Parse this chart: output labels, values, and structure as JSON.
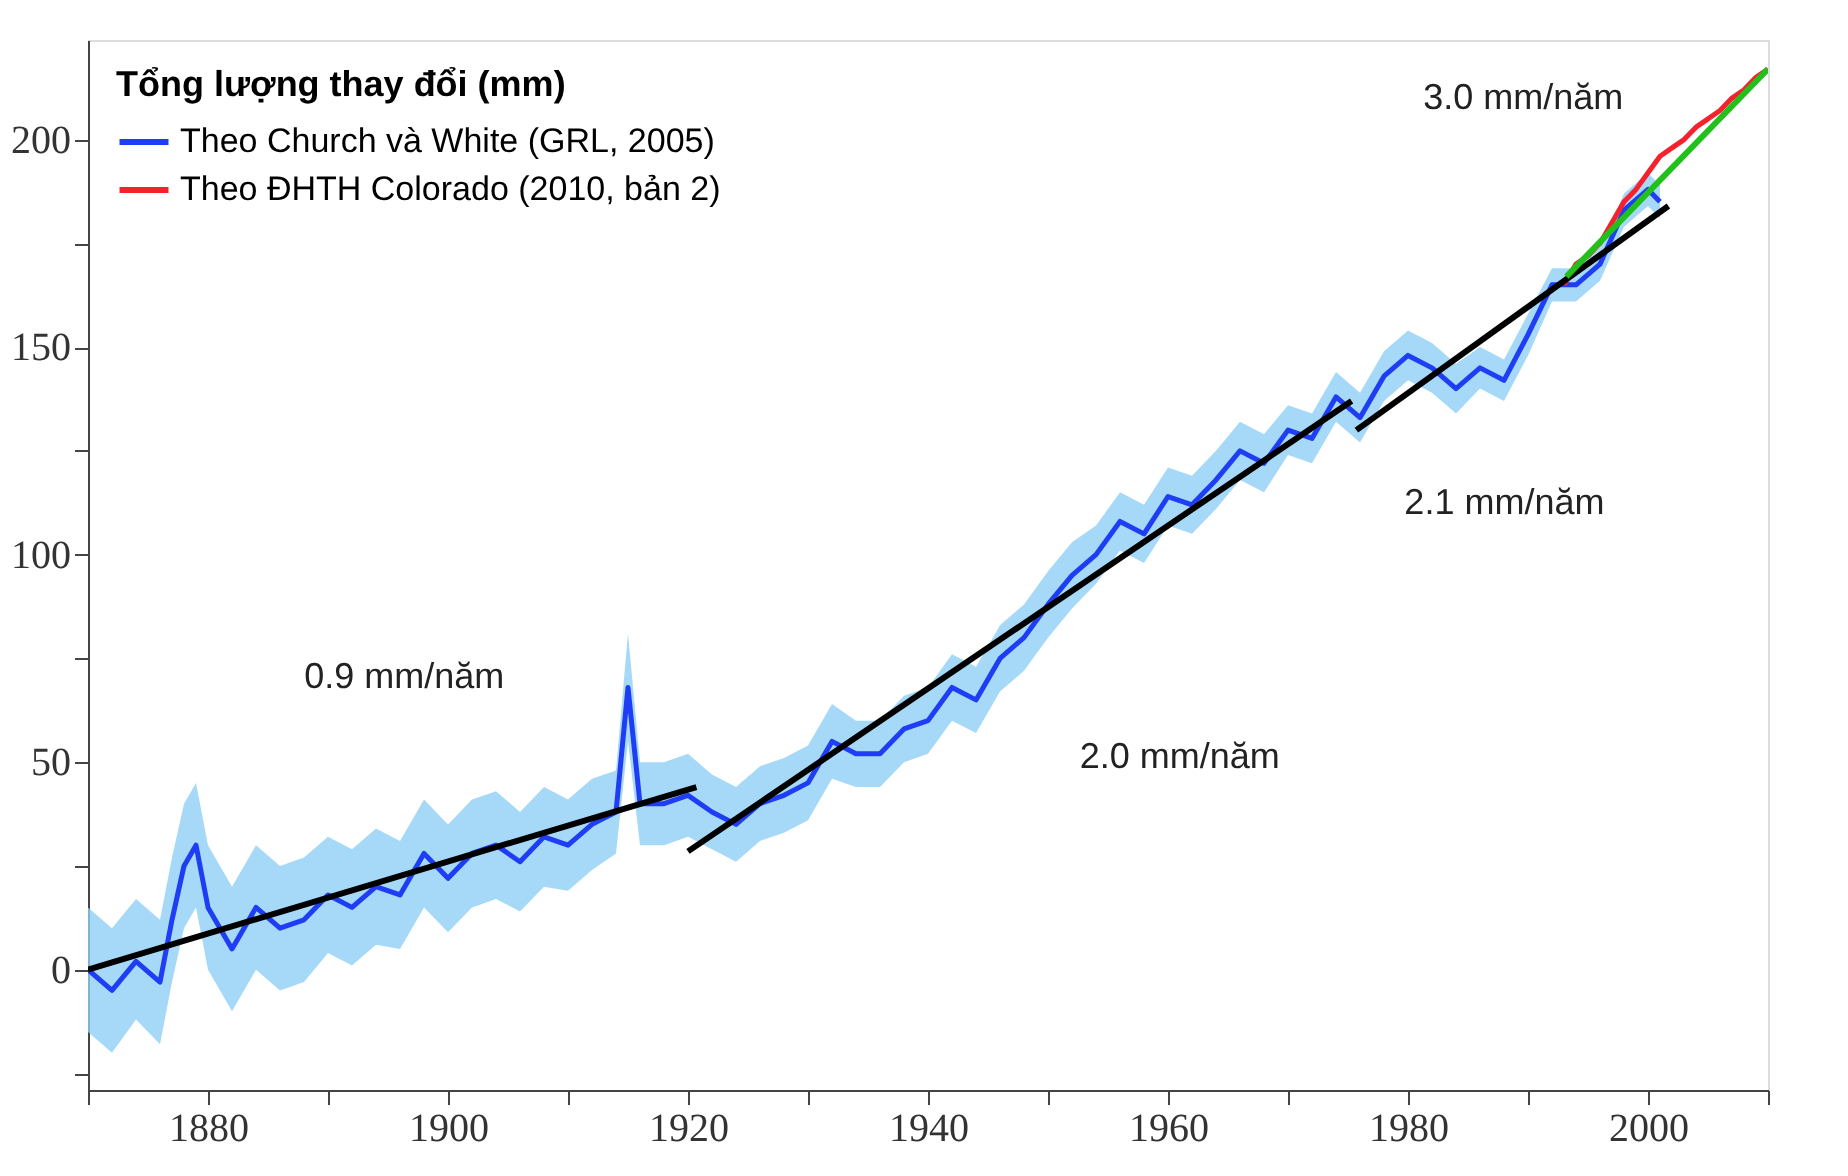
{
  "chart_data": {
    "type": "line",
    "legend_title": "Tổng lượng thay đổi (mm)",
    "legend": "top left",
    "grid": false,
    "xlim": [
      1870,
      2010
    ],
    "ylim": [
      -29,
      224
    ],
    "xticks": [
      {
        "value": 1870,
        "label": null
      },
      1880,
      {
        "value": 1890,
        "label": null
      },
      1900,
      {
        "value": 1910,
        "label": null
      },
      1920,
      {
        "value": 1930,
        "label": null
      },
      1940,
      {
        "value": 1950,
        "label": null
      },
      1960,
      {
        "value": 1970,
        "label": null
      },
      1980,
      {
        "value": 1990,
        "label": null
      },
      2000,
      {
        "value": 2010,
        "label": null
      }
    ],
    "yticks": [
      {
        "value": -25,
        "label": null
      },
      0,
      {
        "value": 25,
        "label": null
      },
      50,
      {
        "value": 75,
        "label": null
      },
      100,
      {
        "value": 125,
        "label": null
      },
      150,
      {
        "value": 175,
        "label": null
      },
      200
    ],
    "series": [
      {
        "name": "Theo Church và White (GRL, 2005)",
        "color": "#1f3df5",
        "x": [
          1870,
          1872,
          1874,
          1876,
          1877,
          1878,
          1879,
          1880,
          1882,
          1884,
          1886,
          1888,
          1890,
          1892,
          1894,
          1896,
          1898,
          1900,
          1902,
          1904,
          1906,
          1908,
          1910,
          1912,
          1914,
          1915,
          1916,
          1918,
          1920,
          1922,
          1924,
          1926,
          1928,
          1930,
          1932,
          1934,
          1936,
          1938,
          1940,
          1942,
          1944,
          1946,
          1948,
          1950,
          1952,
          1954,
          1956,
          1958,
          1960,
          1962,
          1964,
          1966,
          1968,
          1970,
          1972,
          1974,
          1976,
          1978,
          1980,
          1982,
          1984,
          1986,
          1988,
          1990,
          1992,
          1994,
          1996,
          1998,
          2000,
          2001
        ],
        "values": [
          0,
          -5,
          2,
          -3,
          12,
          25,
          30,
          15,
          5,
          15,
          10,
          12,
          18,
          15,
          20,
          18,
          28,
          22,
          28,
          30,
          26,
          32,
          30,
          35,
          38,
          68,
          40,
          40,
          42,
          38,
          35,
          40,
          42,
          45,
          55,
          52,
          52,
          58,
          60,
          68,
          65,
          75,
          80,
          88,
          95,
          100,
          108,
          105,
          114,
          112,
          118,
          125,
          122,
          130,
          128,
          138,
          133,
          143,
          148,
          145,
          140,
          145,
          142,
          153,
          165,
          165,
          170,
          183,
          188,
          185
        ],
        "lower": [
          -15,
          -20,
          -12,
          -18,
          -3,
          10,
          15,
          0,
          -10,
          0,
          -5,
          -3,
          4,
          1,
          6,
          5,
          15,
          9,
          15,
          17,
          14,
          20,
          19,
          24,
          28,
          55,
          30,
          30,
          32,
          29,
          26,
          31,
          33,
          36,
          46,
          44,
          44,
          50,
          52,
          60,
          57,
          67,
          72,
          80,
          87,
          93,
          101,
          98,
          107,
          105,
          111,
          118,
          115,
          124,
          122,
          132,
          127,
          137,
          142,
          139,
          134,
          140,
          137,
          148,
          161,
          161,
          166,
          179,
          184,
          181
        ],
        "upper": [
          15,
          10,
          17,
          12,
          27,
          40,
          45,
          30,
          20,
          30,
          25,
          27,
          32,
          29,
          34,
          31,
          41,
          35,
          41,
          43,
          38,
          44,
          41,
          46,
          48,
          81,
          50,
          50,
          52,
          47,
          44,
          49,
          51,
          54,
          64,
          60,
          60,
          66,
          68,
          76,
          73,
          83,
          88,
          96,
          103,
          107,
          115,
          112,
          121,
          119,
          125,
          132,
          129,
          136,
          134,
          144,
          139,
          149,
          154,
          151,
          146,
          150,
          147,
          158,
          169,
          169,
          174,
          187,
          192,
          189
        ]
      },
      {
        "name": "Theo ĐHTH Colorado (2010, bản 2)",
        "color": "#f5222d",
        "x": [
          1993,
          1994,
          1995,
          1996,
          1997,
          1998,
          1999,
          2000,
          2001,
          2002,
          2003,
          2004,
          2005,
          2006,
          2007,
          2008,
          2009,
          2010
        ],
        "values": [
          165,
          170,
          172,
          175,
          180,
          185,
          188,
          192,
          196,
          198,
          200,
          203,
          205,
          207,
          210,
          212,
          215,
          217
        ]
      },
      {
        "type": "line",
        "color": "#000000",
        "x": [
          1870,
          1920.7
        ],
        "values": [
          0,
          44
        ]
      },
      {
        "type": "line",
        "color": "#000000",
        "x": [
          1920,
          1975.3
        ],
        "values": [
          28.5,
          137
        ]
      },
      {
        "type": "line",
        "color": "#000000",
        "x": [
          1975.7,
          2001.7
        ],
        "values": [
          130,
          184
        ]
      },
      {
        "type": "line",
        "color": "#22c01a",
        "x": [
          1993.2,
          2010
        ],
        "values": [
          167,
          217
        ]
      }
    ],
    "annotations": [
      "0.9 mm/năm",
      "2.0 mm/năm",
      "2.1 mm/năm",
      "3.0 mm/năm"
    ]
  }
}
